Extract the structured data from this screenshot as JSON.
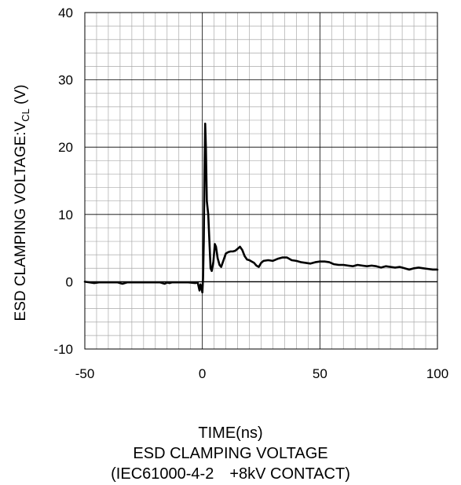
{
  "chart_data": {
    "type": "line",
    "title": "",
    "xlabel": "TIME(ns)",
    "ylabel": "ESD CLAMPING VOLTAGE:V",
    "ylabel_sub": "CL",
    "ylabel_unit": " (V)",
    "captions": [
      "ESD CLAMPING VOLTAGE",
      "(IEC61000-4-2　+8kV CONTACT)"
    ],
    "xlim": [
      -50,
      100
    ],
    "ylim": [
      -10,
      40
    ],
    "xticks": [
      -50,
      0,
      50,
      100
    ],
    "yticks": [
      -10,
      0,
      10,
      20,
      30,
      40
    ],
    "grid": true,
    "line_color": "#000000",
    "series": [
      {
        "values": [
          [
            -50,
            0
          ],
          [
            -48,
            -0.1
          ],
          [
            -46,
            -0.2
          ],
          [
            -44,
            -0.1
          ],
          [
            -40,
            -0.1
          ],
          [
            -36,
            -0.1
          ],
          [
            -34,
            -0.3
          ],
          [
            -32,
            -0.1
          ],
          [
            -28,
            -0.1
          ],
          [
            -22,
            -0.1
          ],
          [
            -18,
            -0.1
          ],
          [
            -16,
            -0.3
          ],
          [
            -15,
            -0.1
          ],
          [
            -14,
            -0.2
          ],
          [
            -13,
            -0.1
          ],
          [
            -10,
            -0.1
          ],
          [
            -6,
            -0.1
          ],
          [
            -3,
            -0.2
          ],
          [
            -2,
            -0.1
          ],
          [
            -1.2,
            -1.3
          ],
          [
            -0.8,
            -0.4
          ],
          [
            -0.4,
            -0.9
          ],
          [
            0,
            -1.6
          ],
          [
            0.3,
            0.5
          ],
          [
            0.6,
            6
          ],
          [
            0.9,
            16
          ],
          [
            1.2,
            23.5
          ],
          [
            1.5,
            20
          ],
          [
            1.9,
            12
          ],
          [
            2.5,
            10
          ],
          [
            3,
            6
          ],
          [
            3.5,
            2
          ],
          [
            4,
            1.6
          ],
          [
            4.7,
            3
          ],
          [
            5.3,
            5.6
          ],
          [
            5.8,
            5.2
          ],
          [
            6.5,
            3.5
          ],
          [
            7.3,
            2.5
          ],
          [
            8,
            2.2
          ],
          [
            9,
            3.2
          ],
          [
            10,
            4.2
          ],
          [
            11,
            4.4
          ],
          [
            12,
            4.5
          ],
          [
            13,
            4.5
          ],
          [
            14,
            4.6
          ],
          [
            15,
            4.9
          ],
          [
            16,
            5.2
          ],
          [
            17,
            4.7
          ],
          [
            18,
            3.8
          ],
          [
            19,
            3.3
          ],
          [
            20,
            3.2
          ],
          [
            21,
            3.0
          ],
          [
            22,
            2.8
          ],
          [
            23,
            2.4
          ],
          [
            24,
            2.2
          ],
          [
            25,
            2.8
          ],
          [
            26,
            3.1
          ],
          [
            28,
            3.2
          ],
          [
            30,
            3.1
          ],
          [
            32,
            3.4
          ],
          [
            34,
            3.6
          ],
          [
            36,
            3.6
          ],
          [
            38,
            3.2
          ],
          [
            40,
            3.1
          ],
          [
            42,
            2.9
          ],
          [
            44,
            2.8
          ],
          [
            46,
            2.7
          ],
          [
            48,
            2.9
          ],
          [
            50,
            3.0
          ],
          [
            52,
            3.0
          ],
          [
            54,
            2.9
          ],
          [
            56,
            2.6
          ],
          [
            58,
            2.5
          ],
          [
            60,
            2.5
          ],
          [
            62,
            2.4
          ],
          [
            64,
            2.3
          ],
          [
            66,
            2.5
          ],
          [
            68,
            2.4
          ],
          [
            70,
            2.3
          ],
          [
            72,
            2.4
          ],
          [
            74,
            2.3
          ],
          [
            76,
            2.1
          ],
          [
            78,
            2.3
          ],
          [
            80,
            2.2
          ],
          [
            82,
            2.1
          ],
          [
            84,
            2.2
          ],
          [
            86,
            2.0
          ],
          [
            88,
            1.8
          ],
          [
            90,
            2.0
          ],
          [
            92,
            2.1
          ],
          [
            94,
            2.0
          ],
          [
            96,
            1.9
          ],
          [
            98,
            1.8
          ],
          [
            100,
            1.8
          ]
        ]
      }
    ]
  }
}
